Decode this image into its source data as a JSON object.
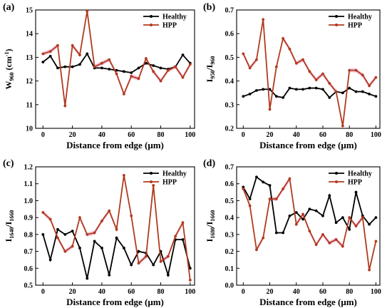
{
  "colors": {
    "healthy": "#000000",
    "hpp": "#b23a1e",
    "band": "#f2b8d6"
  },
  "chart_data": [
    {
      "type": "line",
      "panel_label": "(a)",
      "ylabel_main": "W",
      "ylabel_sub": "960",
      "ylabel_unit": " (cm",
      "ylabel_sup": "-1",
      "ylabel_end": ")",
      "xlabel": "Distance from edge (μm)",
      "legend_placement": "top-right",
      "xlim": [
        -5,
        103
      ],
      "ylim": [
        10,
        15
      ],
      "xticks": [
        0,
        20,
        40,
        60,
        80,
        100
      ],
      "xtick_labels": [
        "0",
        "20",
        "40",
        "60",
        "80",
        "100"
      ],
      "yticks": [
        10,
        11,
        12,
        13,
        14,
        15
      ],
      "ytick_labels": [
        "10",
        "11",
        "12",
        "13",
        "14",
        "15"
      ],
      "x": [
        0,
        5,
        10,
        15,
        20,
        25,
        30,
        35,
        40,
        45,
        50,
        55,
        60,
        65,
        70,
        75,
        80,
        85,
        90,
        95,
        100
      ],
      "series": [
        {
          "name": "Healthy",
          "values": [
            12.8,
            13.05,
            12.55,
            12.6,
            12.6,
            12.7,
            13.15,
            12.55,
            12.55,
            12.5,
            12.45,
            12.4,
            12.35,
            12.55,
            12.75,
            12.65,
            12.55,
            12.5,
            12.6,
            13.1,
            12.75
          ]
        },
        {
          "name": "HPP",
          "values": [
            13.15,
            13.25,
            13.5,
            10.95,
            13.5,
            13.1,
            14.95,
            12.6,
            12.75,
            12.9,
            12.3,
            11.45,
            12.2,
            12.1,
            12.95,
            12.4,
            12.0,
            12.45,
            12.6,
            12.15,
            12.7
          ]
        }
      ]
    },
    {
      "type": "line",
      "panel_label": "(b)",
      "ylabel_main": "I",
      "ylabel_sub": "950",
      "ylabel_mid": "/I",
      "ylabel_sub2": "960",
      "xlabel": "Distance from edge (μm)",
      "legend_placement": "top-right",
      "xlim": [
        -5,
        103
      ],
      "ylim": [
        0.2,
        0.7
      ],
      "xticks": [
        0,
        20,
        40,
        60,
        80,
        100
      ],
      "xtick_labels": [
        "0",
        "20",
        "40",
        "60",
        "80",
        "100"
      ],
      "yticks": [
        0.2,
        0.3,
        0.4,
        0.5,
        0.6,
        0.7
      ],
      "ytick_labels": [
        "0.2",
        "0.3",
        "0.4",
        "0.5",
        "0.6",
        "0.7"
      ],
      "x": [
        0,
        5,
        10,
        15,
        20,
        25,
        30,
        35,
        40,
        45,
        50,
        55,
        60,
        65,
        70,
        75,
        80,
        85,
        90,
        95,
        100
      ],
      "series": [
        {
          "name": "Healthy",
          "values": [
            0.335,
            0.345,
            0.36,
            0.365,
            0.365,
            0.335,
            0.33,
            0.37,
            0.365,
            0.365,
            0.37,
            0.37,
            0.365,
            0.33,
            0.355,
            0.35,
            0.37,
            0.355,
            0.355,
            0.345,
            0.335
          ]
        },
        {
          "name": "HPP",
          "values": [
            0.515,
            0.455,
            0.49,
            0.66,
            0.28,
            0.46,
            0.58,
            0.535,
            0.475,
            0.49,
            0.44,
            0.405,
            0.43,
            0.39,
            0.355,
            0.21,
            0.445,
            0.445,
            0.425,
            0.38,
            0.415
          ]
        }
      ]
    },
    {
      "type": "line",
      "panel_label": "(c)",
      "ylabel_main": "I",
      "ylabel_sub": "1640",
      "ylabel_mid": "/I",
      "ylabel_sub2": "1660",
      "xlabel": "Distance from edge (μm)",
      "legend_placement": "top-right",
      "xlim": [
        -5,
        103
      ],
      "ylim": [
        0.5,
        1.2
      ],
      "xticks": [
        0,
        20,
        40,
        60,
        80,
        100
      ],
      "xtick_labels": [
        "0",
        "20",
        "40",
        "60",
        "80",
        "100"
      ],
      "yticks": [
        0.5,
        0.6,
        0.7,
        0.8,
        0.9,
        1.0,
        1.1,
        1.2
      ],
      "ytick_labels": [
        "0.5",
        "0.6",
        "0.7",
        "0.8",
        "0.9",
        "1.0",
        "1.1",
        "1.2"
      ],
      "x": [
        0,
        5,
        10,
        15,
        20,
        25,
        30,
        35,
        40,
        45,
        50,
        55,
        60,
        65,
        70,
        75,
        80,
        85,
        90,
        95,
        100
      ],
      "series": [
        {
          "name": "Healthy",
          "values": [
            0.8,
            0.65,
            0.83,
            0.8,
            0.82,
            0.72,
            0.54,
            0.76,
            0.72,
            0.56,
            0.78,
            0.72,
            0.62,
            0.7,
            0.69,
            0.62,
            0.7,
            0.56,
            0.77,
            0.77,
            0.6
          ]
        },
        {
          "name": "HPP",
          "values": [
            0.93,
            0.89,
            0.78,
            0.7,
            0.73,
            0.9,
            0.8,
            0.81,
            0.88,
            0.94,
            0.83,
            1.15,
            0.91,
            0.63,
            0.67,
            1.09,
            0.64,
            0.67,
            0.79,
            0.87,
            0.53
          ]
        }
      ]
    },
    {
      "type": "line",
      "panel_label": "(d)",
      "ylabel_main": "I",
      "ylabel_sub": "1680",
      "ylabel_mid": "/I",
      "ylabel_sub2": "1660",
      "xlabel": "Distance from edge (μm)",
      "legend_placement": "top-right",
      "xlim": [
        -5,
        103
      ],
      "ylim": [
        0.0,
        0.7
      ],
      "xticks": [
        0,
        20,
        40,
        60,
        80,
        100
      ],
      "xtick_labels": [
        "0",
        "20",
        "40",
        "60",
        "80",
        "100"
      ],
      "yticks": [
        0.0,
        0.1,
        0.2,
        0.3,
        0.4,
        0.5,
        0.6,
        0.7
      ],
      "ytick_labels": [
        "0.0",
        "0.1",
        "0.2",
        "0.3",
        "0.4",
        "0.5",
        "0.6",
        "0.7"
      ],
      "x": [
        0,
        5,
        10,
        15,
        20,
        25,
        30,
        35,
        40,
        45,
        50,
        55,
        60,
        65,
        70,
        75,
        80,
        85,
        90,
        95,
        100
      ],
      "series": [
        {
          "name": "Healthy",
          "values": [
            0.58,
            0.51,
            0.64,
            0.61,
            0.59,
            0.31,
            0.31,
            0.41,
            0.43,
            0.39,
            0.45,
            0.44,
            0.41,
            0.53,
            0.37,
            0.4,
            0.33,
            0.55,
            0.41,
            0.36,
            0.4
          ]
        },
        {
          "name": "HPP",
          "values": [
            0.57,
            0.47,
            0.21,
            0.28,
            0.51,
            0.51,
            0.57,
            0.63,
            0.36,
            0.42,
            0.32,
            0.24,
            0.3,
            0.25,
            0.27,
            0.23,
            0.4,
            0.35,
            0.4,
            0.09,
            0.26
          ]
        }
      ]
    }
  ]
}
